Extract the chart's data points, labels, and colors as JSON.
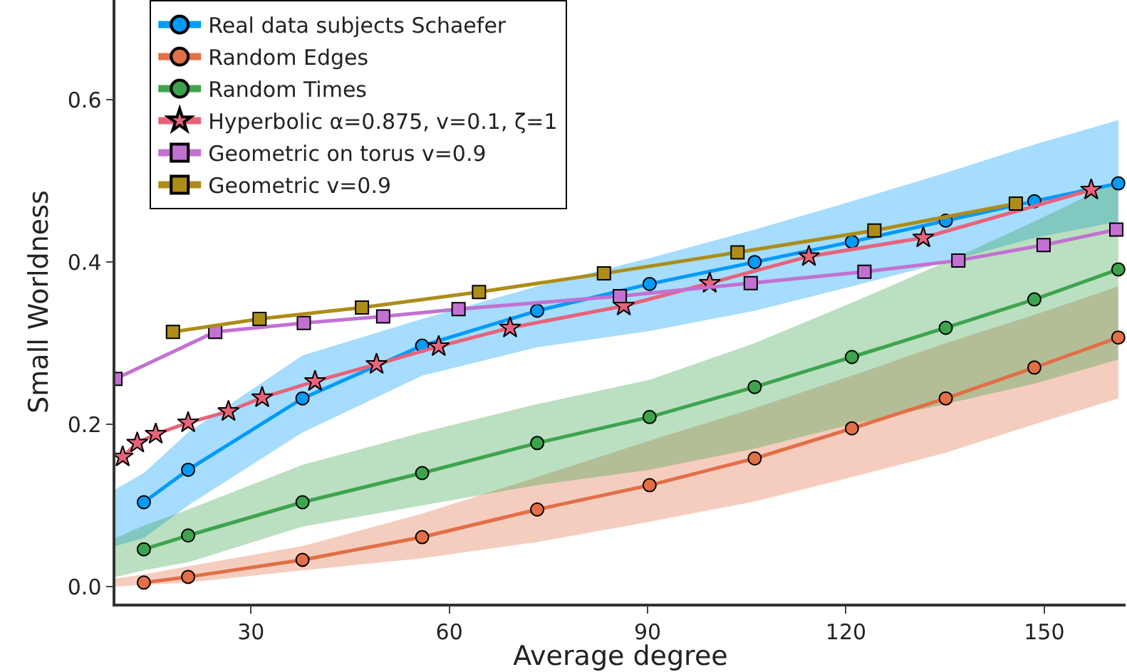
{
  "chart_data": {
    "type": "line",
    "xlabel": "Average degree",
    "ylabel": "Small Worldness",
    "xlim": [
      9.5,
      162.3
    ],
    "ylim": [
      -0.021,
      0.723
    ],
    "xticks": [
      30,
      60,
      90,
      120,
      150
    ],
    "yticks": [
      {
        "value": 0,
        "label": "0.0"
      },
      0.2,
      0.4,
      0.6
    ],
    "grid": false,
    "legend": "top left",
    "series": [
      {
        "name": "Real data subjects Schaefer",
        "color": "#009af9",
        "marker": "circle",
        "x": [
          9.5,
          13.8,
          20.5,
          37.8,
          55.9,
          73.3,
          90.3,
          106.2,
          120.9,
          135.1,
          148.5,
          161.2
        ],
        "values": [
          null,
          0.104,
          0.144,
          0.232,
          0.297,
          0.34,
          0.373,
          0.4,
          0.425,
          0.451,
          0.475,
          0.497
        ],
        "lower": [
          0.05,
          0.06,
          0.1,
          0.19,
          0.26,
          0.295,
          0.315,
          0.34,
          0.37,
          0.4,
          0.43,
          0.45
        ],
        "upper": [
          0.12,
          0.14,
          0.19,
          0.285,
          0.33,
          0.37,
          0.405,
          0.44,
          0.475,
          0.51,
          0.545,
          0.575
        ]
      },
      {
        "name": "Random Edges",
        "color": "#e26f46",
        "marker": "circle",
        "x": [
          9.5,
          13.8,
          20.5,
          37.8,
          55.9,
          73.3,
          90.3,
          106.2,
          120.9,
          135.1,
          148.5,
          161.2
        ],
        "values": [
          null,
          0.005,
          0.012,
          0.033,
          0.061,
          0.095,
          0.125,
          0.158,
          0.195,
          0.232,
          0.27,
          0.307
        ],
        "lower": [
          0.0,
          0.002,
          0.005,
          0.02,
          0.035,
          0.055,
          0.08,
          0.105,
          0.135,
          0.165,
          0.2,
          0.232
        ],
        "upper": [
          0.01,
          0.015,
          0.025,
          0.05,
          0.09,
          0.135,
          0.18,
          0.22,
          0.26,
          0.3,
          0.335,
          0.37
        ]
      },
      {
        "name": "Random Times",
        "color": "#3da44d",
        "marker": "circle",
        "x": [
          9.5,
          13.8,
          20.5,
          37.8,
          55.9,
          73.3,
          90.3,
          106.2,
          120.9,
          135.1,
          148.5,
          161.2
        ],
        "values": [
          null,
          0.046,
          0.063,
          0.104,
          0.14,
          0.177,
          0.209,
          0.246,
          0.283,
          0.319,
          0.354,
          0.391
        ],
        "lower": [
          0.012,
          0.02,
          0.03,
          0.074,
          0.1,
          0.125,
          0.144,
          0.17,
          0.2,
          0.225,
          0.25,
          0.28
        ],
        "upper": [
          0.06,
          0.075,
          0.095,
          0.15,
          0.19,
          0.225,
          0.255,
          0.3,
          0.35,
          0.4,
          0.45,
          0.5
        ]
      },
      {
        "name": "Hyperbolic α=0.875, v=0.1, ζ=1",
        "color": "#e8637a",
        "marker": "star",
        "x": [
          10.6,
          12.8,
          15.6,
          20.5,
          26.6,
          31.7,
          39.7,
          49.0,
          58.4,
          69.2,
          86.4,
          99.4,
          114.4,
          131.7,
          157.1
        ],
        "values": [
          0.16,
          0.177,
          0.188,
          0.202,
          0.216,
          0.233,
          0.253,
          0.274,
          0.296,
          0.319,
          0.346,
          0.374,
          0.407,
          0.43,
          0.489
        ]
      },
      {
        "name": "Geometric on torus v=0.9",
        "color": "#c271d2",
        "marker": "square",
        "x": [
          9.5,
          24.6,
          38.0,
          50.0,
          61.4,
          85.8,
          105.6,
          122.8,
          137.0,
          149.9,
          160.9
        ],
        "values": [
          0.256,
          0.314,
          0.325,
          0.333,
          0.342,
          0.358,
          0.374,
          0.388,
          0.402,
          0.421,
          0.44
        ]
      },
      {
        "name": "Geometric v=0.9",
        "color": "#ac8d18",
        "marker": "square",
        "x": [
          18.2,
          31.3,
          46.8,
          64.5,
          83.4,
          103.6,
          124.3,
          145.7
        ],
        "values": [
          0.314,
          0.33,
          0.344,
          0.363,
          0.386,
          0.412,
          0.439,
          0.472
        ]
      }
    ]
  }
}
